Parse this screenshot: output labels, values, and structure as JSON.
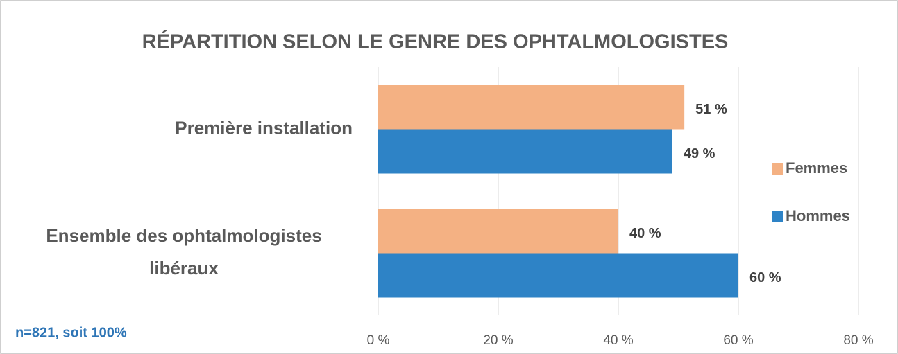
{
  "chart_data": {
    "type": "hbar",
    "title": "RÉPARTITION SELON LE GENRE DES OPHTALMOLOGISTES",
    "categories": [
      "Première installation",
      "Ensemble des ophtalmologistes libéraux"
    ],
    "series": [
      {
        "name": "Femmes",
        "color": "#f4b183",
        "values": [
          51,
          40
        ],
        "value_labels": [
          "51 %",
          "40 %"
        ]
      },
      {
        "name": "Hommes",
        "color": "#2e83c6",
        "values": [
          49,
          60
        ],
        "value_labels": [
          "49 %",
          "60 %"
        ]
      }
    ],
    "xlim": [
      0,
      80
    ],
    "xticks": [
      {
        "value": 0,
        "label": "0 %"
      },
      {
        "value": 20,
        "label": "20 %"
      },
      {
        "value": 40,
        "label": "40 %"
      },
      {
        "value": 60,
        "label": "60 %"
      },
      {
        "value": 80,
        "label": "80 %"
      }
    ],
    "grid": true,
    "legend": "right",
    "note": "n=821, soit 100%"
  }
}
